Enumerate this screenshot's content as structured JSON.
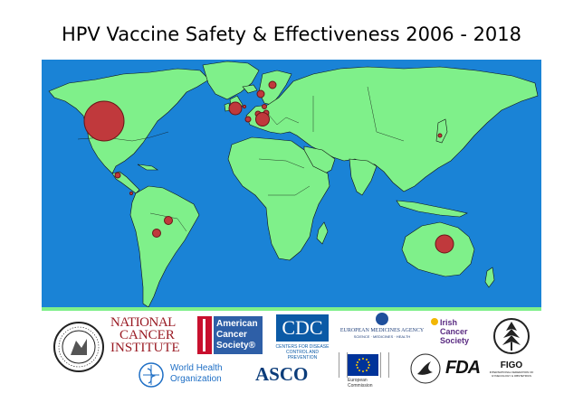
{
  "title": "HPV Vaccine Safety & Effectiveness 2006 - 2018",
  "map": {
    "ocean_color": "#1a83d6",
    "land_color": "#7ff08a",
    "marker_color": "#c0393c",
    "markers": [
      {
        "name": "United States",
        "size": "very-large"
      },
      {
        "name": "Canada",
        "size": "small"
      },
      {
        "name": "Mexico",
        "size": "small"
      },
      {
        "name": "Central America",
        "size": "small"
      },
      {
        "name": "Colombia",
        "size": "tiny"
      },
      {
        "name": "Brazil",
        "size": "small"
      },
      {
        "name": "United Kingdom",
        "size": "medium"
      },
      {
        "name": "Ireland",
        "size": "tiny"
      },
      {
        "name": "Scandinavia",
        "size": "small"
      },
      {
        "name": "Denmark",
        "size": "small"
      },
      {
        "name": "Netherlands",
        "size": "small"
      },
      {
        "name": "France",
        "size": "small"
      },
      {
        "name": "Germany",
        "size": "small"
      },
      {
        "name": "Italy",
        "size": "large"
      },
      {
        "name": "Japan",
        "size": "tiny"
      },
      {
        "name": "Australia",
        "size": "large"
      }
    ]
  },
  "logos": {
    "aap": {
      "name": "American Academy of Pediatrics seal"
    },
    "nci": {
      "line1": "NATIONAL",
      "line2": "CANCER",
      "line3": "INSTITUTE"
    },
    "acs": {
      "line1": "American",
      "line2": "Cancer",
      "line3": "Society®"
    },
    "cdc": {
      "abbr": "CDC",
      "line1": "CENTERS FOR DISEASE",
      "line2": "CONTROL AND PREVENTION"
    },
    "ema": {
      "line1": "EUROPEAN MEDICINES AGENCY",
      "line2": "SCIENCE · MEDICINES · HEALTH"
    },
    "ics": {
      "line1": "Irish",
      "line2": "Cancer",
      "line3": "Society"
    },
    "figo": {
      "abbr": "FIGO",
      "sub": "INTERNATIONAL FEDERATION OF GYNECOLOGY & OBSTETRICS"
    },
    "who": {
      "line1": "World Health",
      "line2": "Organization"
    },
    "asco": {
      "abbr": "ASCO"
    },
    "ec": {
      "line1": "European",
      "line2": "Commission"
    },
    "fda": {
      "abbr": "FDA"
    }
  }
}
